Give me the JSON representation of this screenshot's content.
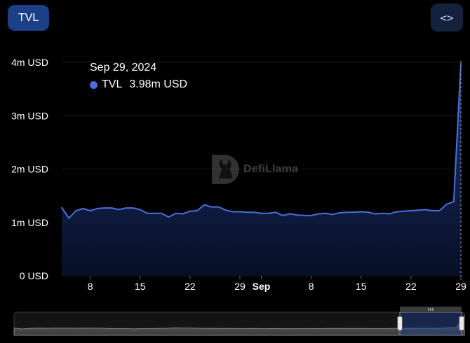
{
  "toolbar": {
    "tvl_label": "TVL",
    "embed_label": "<>"
  },
  "tooltip": {
    "date": "Sep 29, 2024",
    "series": "TVL",
    "value": "3.98m USD"
  },
  "watermark": {
    "text": "DefiLlama"
  },
  "colors": {
    "line": "#4a6fdf",
    "fill_top": "#203a7d",
    "fill_bottom": "#08102a",
    "grid": "#1c1c1c",
    "axis_text": "#ffffff"
  },
  "chart_data": {
    "type": "area",
    "title": "",
    "xlabel": "",
    "ylabel": "",
    "series": [
      {
        "name": "TVL",
        "x": [
          "2024-08-04",
          "2024-08-05",
          "2024-08-06",
          "2024-08-07",
          "2024-08-08",
          "2024-08-09",
          "2024-08-10",
          "2024-08-11",
          "2024-08-12",
          "2024-08-13",
          "2024-08-14",
          "2024-08-15",
          "2024-08-16",
          "2024-08-17",
          "2024-08-18",
          "2024-08-19",
          "2024-08-20",
          "2024-08-21",
          "2024-08-22",
          "2024-08-23",
          "2024-08-24",
          "2024-08-25",
          "2024-08-26",
          "2024-08-27",
          "2024-08-28",
          "2024-08-29",
          "2024-08-30",
          "2024-08-31",
          "2024-09-01",
          "2024-09-02",
          "2024-09-03",
          "2024-09-04",
          "2024-09-05",
          "2024-09-06",
          "2024-09-07",
          "2024-09-08",
          "2024-09-09",
          "2024-09-10",
          "2024-09-11",
          "2024-09-12",
          "2024-09-13",
          "2024-09-14",
          "2024-09-15",
          "2024-09-16",
          "2024-09-17",
          "2024-09-18",
          "2024-09-19",
          "2024-09-20",
          "2024-09-21",
          "2024-09-22",
          "2024-09-23",
          "2024-09-24",
          "2024-09-25",
          "2024-09-26",
          "2024-09-27",
          "2024-09-28",
          "2024-09-29"
        ],
        "y": [
          1.28,
          1.08,
          1.22,
          1.26,
          1.22,
          1.26,
          1.27,
          1.27,
          1.24,
          1.27,
          1.27,
          1.24,
          1.17,
          1.17,
          1.17,
          1.1,
          1.17,
          1.16,
          1.21,
          1.22,
          1.33,
          1.29,
          1.29,
          1.23,
          1.2,
          1.2,
          1.19,
          1.19,
          1.17,
          1.17,
          1.19,
          1.13,
          1.16,
          1.14,
          1.13,
          1.13,
          1.16,
          1.17,
          1.15,
          1.18,
          1.19,
          1.19,
          1.2,
          1.19,
          1.16,
          1.17,
          1.16,
          1.2,
          1.21,
          1.22,
          1.23,
          1.24,
          1.22,
          1.22,
          1.34,
          1.39,
          3.98
        ]
      }
    ],
    "y_unit": "m USD",
    "ylim": [
      0,
      4
    ],
    "yticks": [
      {
        "value": 0,
        "label": "0 USD"
      },
      {
        "value": 1,
        "label": "1m USD"
      },
      {
        "value": 2,
        "label": "2m USD"
      },
      {
        "value": 3,
        "label": "3m USD"
      },
      {
        "value": 4,
        "label": "4m USD"
      }
    ],
    "xticks": [
      {
        "date": "2024-08-08",
        "label": "8",
        "bold": false
      },
      {
        "date": "2024-08-15",
        "label": "15",
        "bold": false
      },
      {
        "date": "2024-08-22",
        "label": "22",
        "bold": false
      },
      {
        "date": "2024-08-29",
        "label": "29",
        "bold": false
      },
      {
        "date": "2024-09-01",
        "label": "Sep",
        "bold": true
      },
      {
        "date": "2024-09-08",
        "label": "8",
        "bold": false
      },
      {
        "date": "2024-09-15",
        "label": "15",
        "bold": false
      },
      {
        "date": "2024-09-22",
        "label": "22",
        "bold": false
      },
      {
        "date": "2024-09-29",
        "label": "29",
        "bold": false
      }
    ],
    "grid": true,
    "legend": "none"
  }
}
